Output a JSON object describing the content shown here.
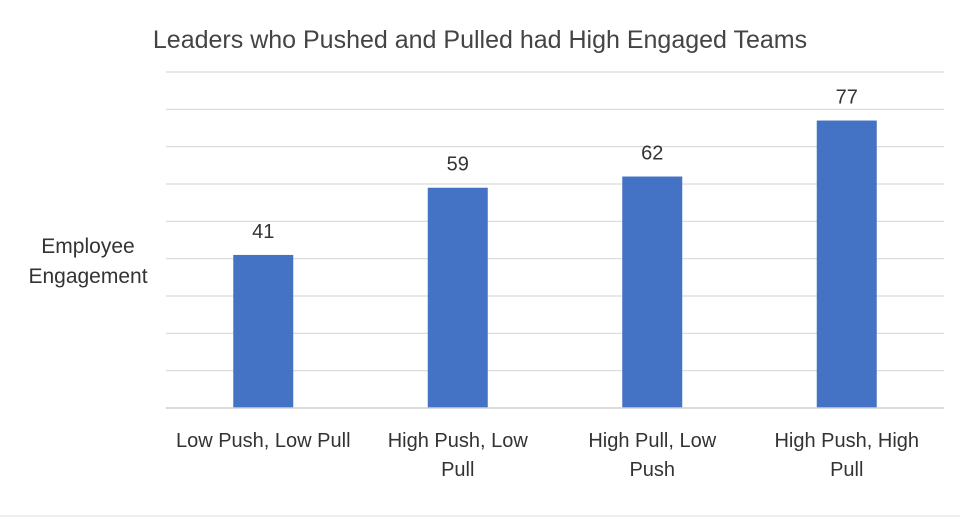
{
  "chart_data": {
    "type": "bar",
    "title": "Leaders who Pushed and Pulled had High Engaged Teams",
    "ylabel": [
      "Employee",
      "Engagement"
    ],
    "xlabel": "",
    "categories": [
      [
        "Low Push, Low Pull"
      ],
      [
        "High Push, Low",
        "Pull"
      ],
      [
        "High Pull, Low",
        "Push"
      ],
      [
        "High Push, High",
        "Pull"
      ]
    ],
    "values": [
      41,
      59,
      62,
      77
    ],
    "ylim": [
      0,
      90
    ],
    "grid": true,
    "legend": "none",
    "bar_color": "#4472c4",
    "grid_color": "#d9d9d9"
  }
}
